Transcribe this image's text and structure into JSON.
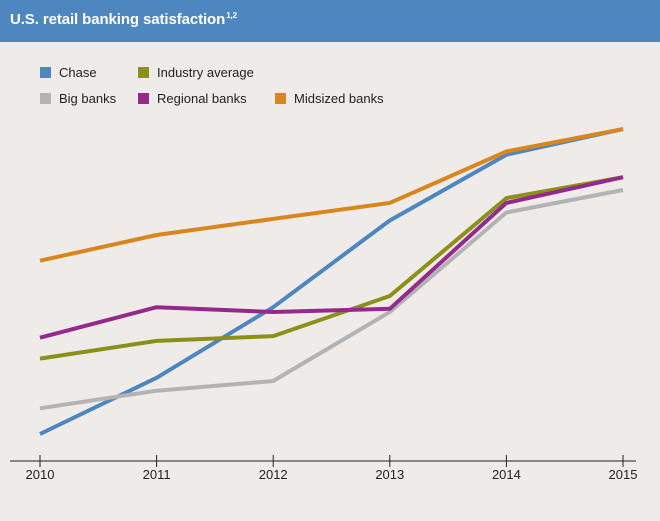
{
  "header": {
    "title": "U.S. retail banking satisfaction",
    "superscript": "1,2"
  },
  "chart_data": {
    "type": "line",
    "title": "U.S. retail banking satisfaction",
    "x": [
      "2010",
      "2011",
      "2012",
      "2013",
      "2014",
      "2015"
    ],
    "ylim": [
      0,
      100
    ],
    "grid": false,
    "legend_position": "top-left",
    "series": [
      {
        "name": "Chase",
        "color": "#4e87c0",
        "values": [
          0,
          17.5,
          39.5,
          66.5,
          87,
          95
        ]
      },
      {
        "name": "Industry average",
        "color": "#8b9118",
        "values": [
          23.5,
          29,
          30.5,
          43,
          73.5,
          80
        ]
      },
      {
        "name": "Big banks",
        "color": "#b4b3b3",
        "values": [
          8,
          13.5,
          16.5,
          38,
          69,
          76
        ]
      },
      {
        "name": "Regional banks",
        "color": "#932a8c",
        "values": [
          30,
          39.5,
          38,
          39,
          72,
          80
        ]
      },
      {
        "name": "Midsized banks",
        "color": "#d9861f",
        "values": [
          54,
          62,
          67,
          72,
          88,
          95
        ]
      }
    ]
  }
}
